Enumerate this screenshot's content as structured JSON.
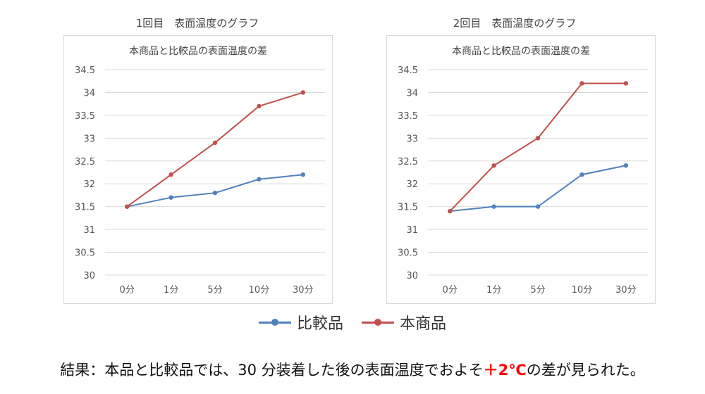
{
  "panels": [
    {
      "title": "1回目　表面温度のグラフ"
    },
    {
      "title": "2回目　表面温度のグラフ"
    }
  ],
  "legend": {
    "items": [
      {
        "label": "比較品",
        "color": "#4f81bd"
      },
      {
        "label": "本商品",
        "color": "#c0504d"
      }
    ]
  },
  "result": {
    "prefix": "結果：本品と比較品では、30 分装着した後の表面温度でおよそ",
    "highlight": "＋2℃",
    "suffix": "の差が見られた。",
    "highlight_color": "#ff0000"
  },
  "chart_data": [
    {
      "type": "line",
      "title": "本商品と比較品の表面温度の差",
      "categories": [
        "0分",
        "1分",
        "5分",
        "10分",
        "30分"
      ],
      "ylim": [
        30,
        34.5
      ],
      "yticks": [
        "30",
        "30.5",
        "31",
        "31.5",
        "32",
        "32.5",
        "33",
        "33.5",
        "34",
        "34.5"
      ],
      "grid": true,
      "series": [
        {
          "name": "比較品",
          "color": "#4f81bd",
          "values": [
            31.5,
            31.7,
            31.8,
            32.1,
            32.2
          ]
        },
        {
          "name": "本商品",
          "color": "#c0504d",
          "values": [
            31.5,
            32.2,
            32.9,
            33.7,
            34.0
          ]
        }
      ]
    },
    {
      "type": "line",
      "title": "本商品と比較品の表面温度の差",
      "categories": [
        "0分",
        "1分",
        "5分",
        "10分",
        "30分"
      ],
      "ylim": [
        30,
        34.5
      ],
      "yticks": [
        "30",
        "30.5",
        "31",
        "31.5",
        "32",
        "32.5",
        "33",
        "33.5",
        "34",
        "34.5"
      ],
      "grid": true,
      "series": [
        {
          "name": "比較品",
          "color": "#4f81bd",
          "values": [
            31.4,
            31.5,
            31.5,
            32.2,
            32.4
          ]
        },
        {
          "name": "本商品",
          "color": "#c0504d",
          "values": [
            31.4,
            32.4,
            33.0,
            34.2,
            34.2
          ]
        }
      ]
    }
  ]
}
